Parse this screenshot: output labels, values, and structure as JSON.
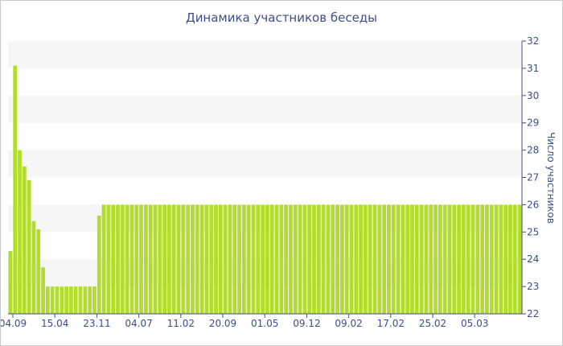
{
  "chart_data": {
    "type": "bar",
    "title": "Динамика участников беседы",
    "xlabel": "",
    "ylabel": "Число участников",
    "ylim": [
      22,
      32
    ],
    "yticks": [
      22,
      23,
      24,
      25,
      26,
      27,
      28,
      29,
      30,
      31,
      32
    ],
    "grid": "horizontal bands",
    "x_tick_labels": [
      "04.09",
      "15.04",
      "23.11",
      "04.07",
      "11.02",
      "20.09",
      "01.05",
      "09.12",
      "09.02",
      "17.02",
      "25.02",
      "05.03"
    ],
    "values": [
      24.3,
      31.1,
      28.0,
      27.4,
      26.9,
      25.4,
      25.1,
      23.7,
      23.0,
      23.0,
      23.0,
      23.0,
      23.0,
      23.0,
      23.0,
      23.0,
      23.0,
      23.0,
      23.0,
      25.6,
      26.0,
      26,
      26,
      26,
      26,
      26,
      26,
      26,
      26,
      26,
      26,
      26,
      26,
      26,
      26,
      26,
      26,
      26,
      26,
      26,
      26,
      26,
      26,
      26,
      26,
      26,
      26,
      26,
      26,
      26,
      26,
      26,
      26,
      26,
      26,
      26,
      26,
      26,
      26,
      26,
      26,
      26,
      26,
      26,
      26,
      26,
      26,
      26,
      26,
      26,
      26,
      26,
      26,
      26,
      26,
      26,
      26,
      26,
      26,
      26,
      26,
      26,
      26,
      26,
      26,
      26,
      26,
      26,
      26,
      26,
      26,
      26,
      26,
      26,
      26,
      26,
      26,
      26,
      26,
      26,
      26,
      26,
      26,
      26,
      26,
      26,
      26,
      26,
      26,
      26
    ],
    "colors": {
      "bar": "#b3dd2e",
      "band": "#f6f6f6",
      "axis": "#3c4e8a",
      "text": "#3c4e8a"
    }
  }
}
